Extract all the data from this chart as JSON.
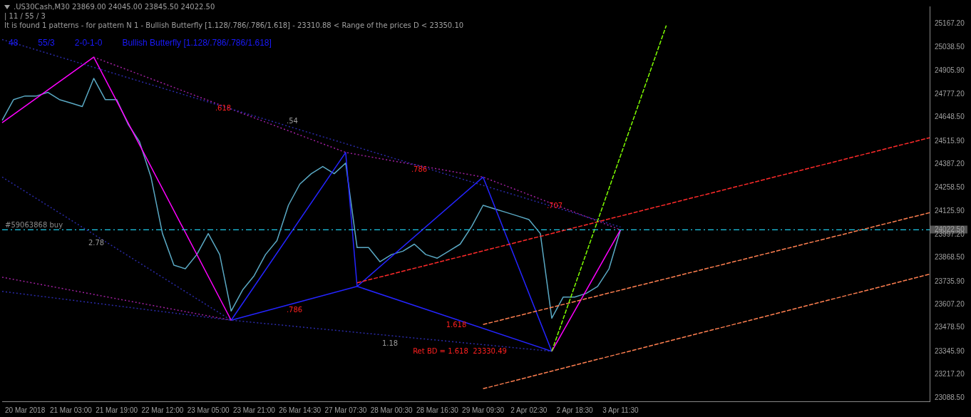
{
  "chart_data": {
    "type": "line",
    "title": ".US30Cash,M30  23869.00 24045.00 23845.50 24022.50",
    "subtitle": "| 11 / 55 / 3",
    "categories": [
      null,
      null,
      "20 Mar 2018",
      null,
      null,
      null,
      "21 Mar 03:00",
      null,
      null,
      null,
      "21 Mar 19:00",
      null,
      null,
      null,
      "22 Mar 12:00",
      null,
      null,
      null,
      "23 Mar 05:00",
      null,
      null,
      null,
      "23 Mar 21:00",
      null,
      null,
      null,
      "26 Mar 14:30",
      null,
      null,
      null,
      "27 Mar 07:30",
      null,
      null,
      null,
      "28 Mar 00:30",
      null,
      null,
      null,
      "28 Mar 16:30",
      null,
      null,
      null,
      "29 Mar 09:30",
      null,
      null,
      null,
      "2 Apr 02:30",
      null,
      null,
      null,
      "2 Apr 18:30",
      null,
      null,
      null,
      "3 Apr 11:30",
      null,
      null,
      null,
      null,
      null,
      null,
      null,
      null,
      null,
      null,
      null,
      null,
      null,
      null,
      null,
      null,
      null,
      null,
      null,
      null,
      null,
      null,
      null,
      null,
      null,
      null,
      null
    ],
    "ylim": [
      23069,
      25265
    ],
    "yticks": [
      {
        "value": 23088.5,
        "label": "23088.50"
      },
      {
        "value": 23217.2,
        "label": "23217.20"
      },
      {
        "value": 23345.9,
        "label": "23345.90"
      },
      {
        "value": 23478.5,
        "label": "23478.50"
      },
      {
        "value": 23607.2,
        "label": "23607.20"
      },
      {
        "value": 23735.9,
        "label": "23735.90"
      },
      {
        "value": 23868.5,
        "label": "23868.50"
      },
      {
        "value": 23997.2,
        "label": "23997.20"
      },
      {
        "value": 24022.5,
        "label": "24022.50"
      },
      {
        "value": 24125.9,
        "label": "24125.90"
      },
      {
        "value": 24258.5,
        "label": "24258.50"
      },
      {
        "value": 24387.2,
        "label": "24387.20"
      },
      {
        "value": 24515.9,
        "label": "24515.90"
      },
      {
        "value": 24648.5,
        "label": "24648.50"
      },
      {
        "value": 24777.2,
        "label": "24777.20"
      },
      {
        "value": 24905.9,
        "label": "24905.90"
      },
      {
        "value": 25038.5,
        "label": "25038.50"
      },
      {
        "value": 25167.2,
        "label": "25167.20"
      }
    ],
    "grid": false,
    "legend": false,
    "marker": "none",
    "series": [
      {
        "type": "line",
        "color": "#5aa9c4",
        "line_style": "solid",
        "values": [
          24631,
          24747,
          24767,
          24767,
          24787,
          24747,
          24728,
          24708,
          24865,
          24747,
          24747,
          24610,
          24512,
          24316,
          24002,
          23826,
          23806,
          23885,
          24002,
          23885,
          23571,
          23688,
          23767,
          23885,
          23963,
          24159,
          24277,
          24335,
          24375,
          24335,
          24394,
          23924,
          23924,
          23845,
          23885,
          23904,
          23943,
          23885,
          23865,
          23904,
          23943,
          24041,
          24159,
          24139,
          24120,
          24100,
          24080,
          24002,
          23531,
          23649,
          23649,
          23669,
          23708,
          23806,
          24022.5,
          null,
          null,
          null,
          null,
          null,
          null,
          null,
          null,
          null,
          null,
          null,
          null,
          null,
          null,
          null,
          null,
          null,
          null,
          null,
          null,
          null,
          null,
          null,
          null,
          null,
          null,
          null
        ]
      },
      {
        "type": "line",
        "color": "#2424ff",
        "line_style": "solid",
        "values": [
          null,
          null,
          null,
          null,
          null,
          null,
          null,
          null,
          null,
          null,
          null,
          null,
          null,
          null,
          null,
          null,
          null,
          null,
          null,
          null,
          23520,
          null,
          null,
          null,
          null,
          null,
          null,
          null,
          null,
          null,
          24453,
          23708,
          null,
          null,
          null,
          null,
          null,
          null,
          null,
          null,
          null,
          null,
          24316,
          null,
          null,
          null,
          null,
          null,
          23347,
          null,
          null,
          null,
          null,
          null,
          null,
          null,
          null,
          null,
          null,
          null,
          null,
          null,
          null,
          null,
          null,
          null,
          null,
          null,
          null,
          null,
          null,
          null,
          null,
          null,
          null,
          null,
          null,
          null,
          null,
          null,
          null,
          null
        ]
      },
      {
        "type": "line",
        "color": "#2424ff",
        "line_style": "solid",
        "values": [
          null,
          null,
          null,
          null,
          null,
          null,
          null,
          null,
          null,
          null,
          null,
          null,
          null,
          null,
          null,
          null,
          null,
          null,
          null,
          null,
          23520,
          null,
          null,
          null,
          null,
          null,
          null,
          null,
          null,
          null,
          null,
          23708,
          null,
          null,
          null,
          null,
          null,
          null,
          null,
          null,
          null,
          null,
          null,
          null,
          null,
          null,
          null,
          null,
          null,
          null,
          null,
          null,
          null,
          null,
          null,
          null,
          null,
          null,
          null,
          null,
          null,
          null,
          null,
          null,
          null,
          null,
          null,
          null,
          null,
          null,
          null,
          null,
          null,
          null,
          null,
          null,
          null,
          null,
          null,
          null,
          null,
          null
        ]
      },
      {
        "type": "line",
        "color": "#2424ff",
        "line_style": "solid",
        "values": [
          null,
          null,
          null,
          null,
          null,
          null,
          null,
          null,
          null,
          null,
          null,
          null,
          null,
          null,
          null,
          null,
          null,
          null,
          null,
          null,
          null,
          null,
          null,
          null,
          null,
          null,
          null,
          null,
          null,
          null,
          null,
          23708,
          null,
          null,
          null,
          null,
          null,
          null,
          null,
          null,
          null,
          null,
          null,
          null,
          null,
          null,
          null,
          null,
          23347,
          null,
          null,
          null,
          null,
          null,
          null,
          null,
          null,
          null,
          null,
          null,
          null,
          null,
          null,
          null,
          null,
          null,
          null,
          null,
          null,
          null,
          null,
          null,
          null,
          null,
          null,
          null,
          null,
          null,
          null,
          null,
          null,
          null
        ]
      },
      {
        "type": "line",
        "color": "#ff00ff",
        "line_style": "solid",
        "values": [
          24618,
          null,
          null,
          null,
          null,
          null,
          null,
          null,
          24983,
          null,
          null,
          null,
          null,
          null,
          null,
          null,
          null,
          null,
          null,
          null,
          23520,
          null,
          null,
          null,
          null,
          null,
          null,
          null,
          null,
          null,
          null,
          null,
          null,
          null,
          null,
          null,
          null,
          null,
          null,
          null,
          null,
          null,
          null,
          null,
          null,
          null,
          null,
          null,
          null,
          null,
          null,
          null,
          null,
          null,
          null,
          null,
          null,
          null,
          null,
          null,
          null,
          null,
          null,
          null,
          null,
          null,
          null,
          null,
          null,
          null,
          null,
          null,
          null,
          null,
          null,
          null,
          null,
          null,
          null,
          null,
          null,
          null
        ]
      },
      {
        "type": "line",
        "color": "#ff00ff",
        "line_style": "solid",
        "values": [
          null,
          null,
          null,
          null,
          null,
          null,
          null,
          null,
          null,
          null,
          null,
          null,
          null,
          null,
          null,
          null,
          null,
          null,
          null,
          null,
          null,
          null,
          null,
          null,
          null,
          null,
          null,
          null,
          null,
          null,
          null,
          null,
          null,
          null,
          null,
          null,
          null,
          null,
          null,
          null,
          null,
          null,
          null,
          null,
          null,
          null,
          null,
          null,
          23347,
          null,
          null,
          null,
          null,
          null,
          24022.5,
          null,
          null,
          null,
          null,
          null,
          null,
          null,
          null,
          null,
          null,
          null,
          null,
          null,
          null,
          null,
          null,
          null,
          null,
          null,
          null,
          null,
          null,
          null,
          null,
          null,
          null,
          null
        ]
      },
      {
        "type": "line",
        "color": "#a020a0",
        "line_style": "dotted",
        "values": [
          null,
          null,
          null,
          null,
          null,
          null,
          null,
          null,
          24983,
          null,
          null,
          null,
          null,
          null,
          null,
          null,
          null,
          null,
          null,
          null,
          null,
          null,
          null,
          null,
          null,
          null,
          null,
          null,
          null,
          null,
          24453,
          null,
          null,
          null,
          null,
          null,
          null,
          null,
          null,
          null,
          null,
          null,
          24316,
          null,
          null,
          null,
          null,
          null,
          null,
          null,
          null,
          null,
          null,
          null,
          24022.5,
          null,
          null,
          null,
          null,
          null,
          null,
          null,
          null,
          null,
          null,
          null,
          null,
          null,
          null,
          null,
          null,
          null,
          null,
          null,
          null,
          null,
          null,
          null,
          null,
          null,
          null,
          null
        ]
      },
      {
        "type": "line",
        "color": "#2a2aa8",
        "line_style": "dotted",
        "values": [
          25081,
          null,
          null,
          null,
          null,
          null,
          null,
          null,
          null,
          null,
          null,
          null,
          null,
          null,
          null,
          null,
          null,
          null,
          null,
          null,
          null,
          null,
          null,
          null,
          null,
          null,
          null,
          null,
          null,
          null,
          null,
          null,
          null,
          null,
          null,
          null,
          null,
          null,
          null,
          null,
          null,
          null,
          null,
          null,
          null,
          null,
          null,
          null,
          null,
          null,
          null,
          null,
          null,
          null,
          24038,
          null,
          null,
          null,
          null,
          null,
          null,
          null,
          null,
          null,
          null,
          null,
          null,
          null,
          null,
          null,
          null,
          null,
          null,
          null,
          null,
          null,
          null,
          null,
          null,
          null,
          null,
          null
        ]
      },
      {
        "type": "line",
        "color": "#2a2aa8",
        "line_style": "dotted",
        "values": [
          24316,
          null,
          null,
          null,
          null,
          null,
          null,
          null,
          null,
          null,
          null,
          null,
          null,
          null,
          null,
          null,
          null,
          null,
          null,
          null,
          23520,
          null,
          null,
          null,
          null,
          null,
          null,
          null,
          null,
          null,
          null,
          null,
          null,
          null,
          null,
          null,
          null,
          null,
          null,
          null,
          null,
          null,
          null,
          null,
          null,
          null,
          null,
          null,
          null,
          null,
          null,
          null,
          null,
          null,
          null,
          null,
          null,
          null,
          null,
          null,
          null,
          null,
          null,
          null,
          null,
          null,
          null,
          null,
          null,
          null,
          null,
          null,
          null,
          null,
          null,
          null,
          null,
          null,
          null,
          null,
          null,
          null
        ]
      },
      {
        "type": "line",
        "color": "#a020a0",
        "line_style": "dotted",
        "values": [
          23759,
          null,
          null,
          null,
          null,
          null,
          null,
          null,
          null,
          null,
          null,
          null,
          null,
          null,
          null,
          null,
          null,
          null,
          null,
          null,
          23520,
          null,
          null,
          null,
          null,
          null,
          null,
          null,
          null,
          null,
          null,
          null,
          null,
          null,
          null,
          null,
          null,
          null,
          null,
          null,
          null,
          null,
          null,
          null,
          null,
          null,
          null,
          null,
          null,
          null,
          null,
          null,
          null,
          null,
          null,
          null,
          null,
          null,
          null,
          null,
          null,
          null,
          null,
          null,
          null,
          null,
          null,
          null,
          null,
          null,
          null,
          null,
          null,
          null,
          null,
          null,
          null,
          null,
          null,
          null,
          null,
          null
        ]
      },
      {
        "type": "line",
        "color": "#2a2aa8",
        "line_style": "dotted",
        "values": [
          23680,
          null,
          null,
          null,
          null,
          null,
          null,
          null,
          null,
          null,
          null,
          null,
          null,
          null,
          null,
          null,
          null,
          null,
          null,
          null,
          23520,
          null,
          null,
          null,
          null,
          null,
          null,
          null,
          null,
          null,
          null,
          null,
          null,
          null,
          null,
          null,
          null,
          null,
          null,
          null,
          null,
          null,
          null,
          null,
          null,
          null,
          null,
          null,
          23347,
          null,
          null,
          null,
          null,
          null,
          null,
          null,
          null,
          null,
          null,
          null,
          null,
          null,
          null,
          null,
          null,
          null,
          null,
          null,
          null,
          null,
          null,
          null,
          null,
          null,
          null,
          null,
          null,
          null,
          null,
          null,
          null,
          null
        ]
      },
      {
        "type": "line",
        "color": "#ff2a2a",
        "line_style": "dashed",
        "values": [
          null,
          null,
          null,
          null,
          null,
          null,
          null,
          null,
          null,
          null,
          null,
          null,
          null,
          null,
          null,
          null,
          null,
          null,
          null,
          null,
          null,
          null,
          null,
          null,
          null,
          null,
          null,
          null,
          null,
          null,
          null,
          23728,
          null,
          null,
          null,
          null,
          null,
          null,
          null,
          null,
          null,
          null,
          null,
          null,
          null,
          null,
          null,
          null,
          null,
          null,
          null,
          null,
          null,
          null,
          null,
          null,
          null,
          null,
          null,
          null,
          null,
          null,
          null,
          null,
          null,
          null,
          null,
          null,
          null,
          null,
          null,
          null,
          null,
          null,
          null,
          null,
          null,
          null,
          null,
          null,
          null,
          24535
        ]
      },
      {
        "type": "line",
        "color": "#ff7f50",
        "line_style": "dashed",
        "values": [
          null,
          null,
          null,
          null,
          null,
          null,
          null,
          null,
          null,
          null,
          null,
          null,
          null,
          null,
          null,
          null,
          null,
          null,
          null,
          null,
          null,
          null,
          null,
          null,
          null,
          null,
          null,
          null,
          null,
          null,
          null,
          null,
          null,
          null,
          null,
          null,
          null,
          null,
          null,
          null,
          null,
          null,
          23496,
          null,
          null,
          null,
          null,
          null,
          null,
          null,
          null,
          null,
          null,
          null,
          null,
          null,
          null,
          null,
          null,
          null,
          null,
          null,
          null,
          null,
          null,
          null,
          null,
          null,
          null,
          null,
          null,
          null,
          null,
          null,
          null,
          null,
          null,
          null,
          null,
          null,
          null,
          24118
        ]
      },
      {
        "type": "line",
        "color": "#ff7f50",
        "line_style": "dashed",
        "values": [
          null,
          null,
          null,
          null,
          null,
          null,
          null,
          null,
          null,
          null,
          null,
          null,
          null,
          null,
          null,
          null,
          null,
          null,
          null,
          null,
          null,
          null,
          null,
          null,
          null,
          null,
          null,
          null,
          null,
          null,
          null,
          null,
          null,
          null,
          null,
          null,
          null,
          null,
          null,
          null,
          null,
          null,
          23139,
          null,
          null,
          null,
          null,
          null,
          null,
          null,
          null,
          null,
          null,
          null,
          null,
          null,
          null,
          null,
          null,
          null,
          null,
          null,
          null,
          null,
          null,
          null,
          null,
          null,
          null,
          null,
          null,
          null,
          null,
          null,
          null,
          null,
          null,
          null,
          null,
          null,
          null,
          23776
        ]
      },
      {
        "type": "line",
        "color": "#7fff00",
        "line_style": "dashed",
        "values": [
          null,
          null,
          null,
          null,
          null,
          null,
          null,
          null,
          null,
          null,
          null,
          null,
          null,
          null,
          null,
          null,
          null,
          null,
          null,
          null,
          null,
          null,
          null,
          null,
          null,
          null,
          null,
          null,
          null,
          null,
          null,
          null,
          null,
          null,
          null,
          null,
          null,
          null,
          null,
          null,
          null,
          null,
          null,
          null,
          null,
          null,
          null,
          null,
          23347,
          null,
          null,
          null,
          null,
          null,
          null,
          null,
          null,
          null,
          25159,
          null,
          null,
          null,
          null,
          null,
          null,
          null,
          null,
          null,
          null,
          null,
          null,
          null,
          null,
          null,
          null,
          null,
          null,
          null,
          null,
          null,
          null,
          null
        ]
      }
    ],
    "ref_lines": [
      {
        "axis": "y",
        "value": 24022.5,
        "label": "#59063868 buy",
        "color": "#1ec8e6",
        "line_style": "dashdot"
      }
    ],
    "annotations": [
      "It is found 1 patterns  -  for pattern N 1 - Bullish Butterfly [1.128/.786/.786/1.618] - 23310.88 < Range of the prices D < 23350.10",
      "48",
      "55/3",
      "2-0-1-0",
      "Bullish Butterfly [1.128/.786/.786/1.618]",
      ".618",
      ".54",
      ".786",
      ".707",
      "2.78",
      ".786",
      "1.618",
      "1.18",
      "Ret BD = 1.618  23330.49"
    ]
  }
}
